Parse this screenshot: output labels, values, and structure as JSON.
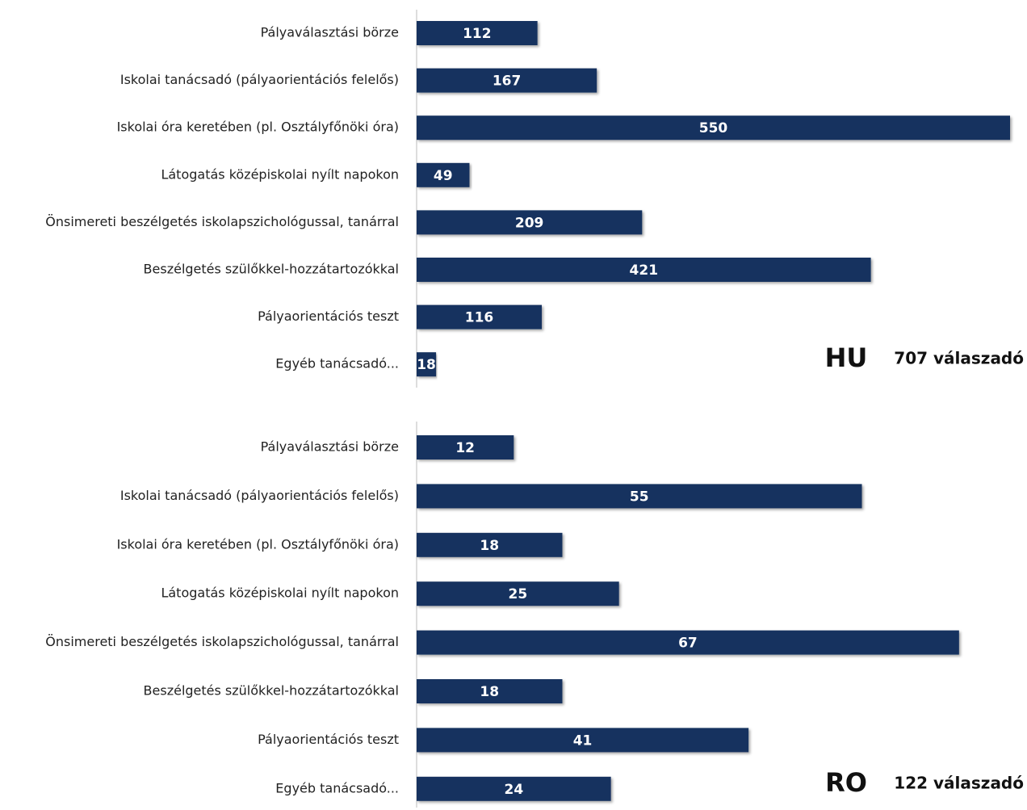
{
  "chart_data": [
    {
      "type": "barh",
      "annotations": [
        "HU",
        "707 válaszadó"
      ],
      "categories": [
        "Pályaválasztási börze",
        "Iskolai tanácsadó (pályaorientációs felelős)",
        "Iskolai óra keretében (pl. Osztályfőnöki óra)",
        "Látogatás középiskolai nyílt napokon",
        "Önsimereti beszélgetés iskolapszichológussal, tanárral",
        "Beszélgetés szülőkkel-hozzátartozókkal",
        "Pályaorientációs teszt",
        "Egyéb tanácsadó..."
      ],
      "values": [
        112,
        167,
        550,
        49,
        209,
        421,
        116,
        18
      ],
      "color": "#17325f",
      "xlim": [
        0,
        550
      ]
    },
    {
      "type": "barh",
      "annotations": [
        "RO",
        "122 válaszadó"
      ],
      "categories": [
        "Pályaválasztási börze",
        "Iskolai tanácsadó (pályaorientációs felelős)",
        "Iskolai óra keretében (pl. Osztályfőnöki óra)",
        "Látogatás középiskolai nyílt napokon",
        "Önsimereti beszélgetés iskolapszichológussal, tanárral",
        "Beszélgetés szülőkkel-hozzátartozókkal",
        "Pályaorientációs teszt",
        "Egyéb tanácsadó..."
      ],
      "values": [
        12,
        55,
        18,
        25,
        67,
        18,
        41,
        24
      ],
      "color": "#17325f",
      "xlim": [
        0,
        73.3
      ]
    }
  ]
}
